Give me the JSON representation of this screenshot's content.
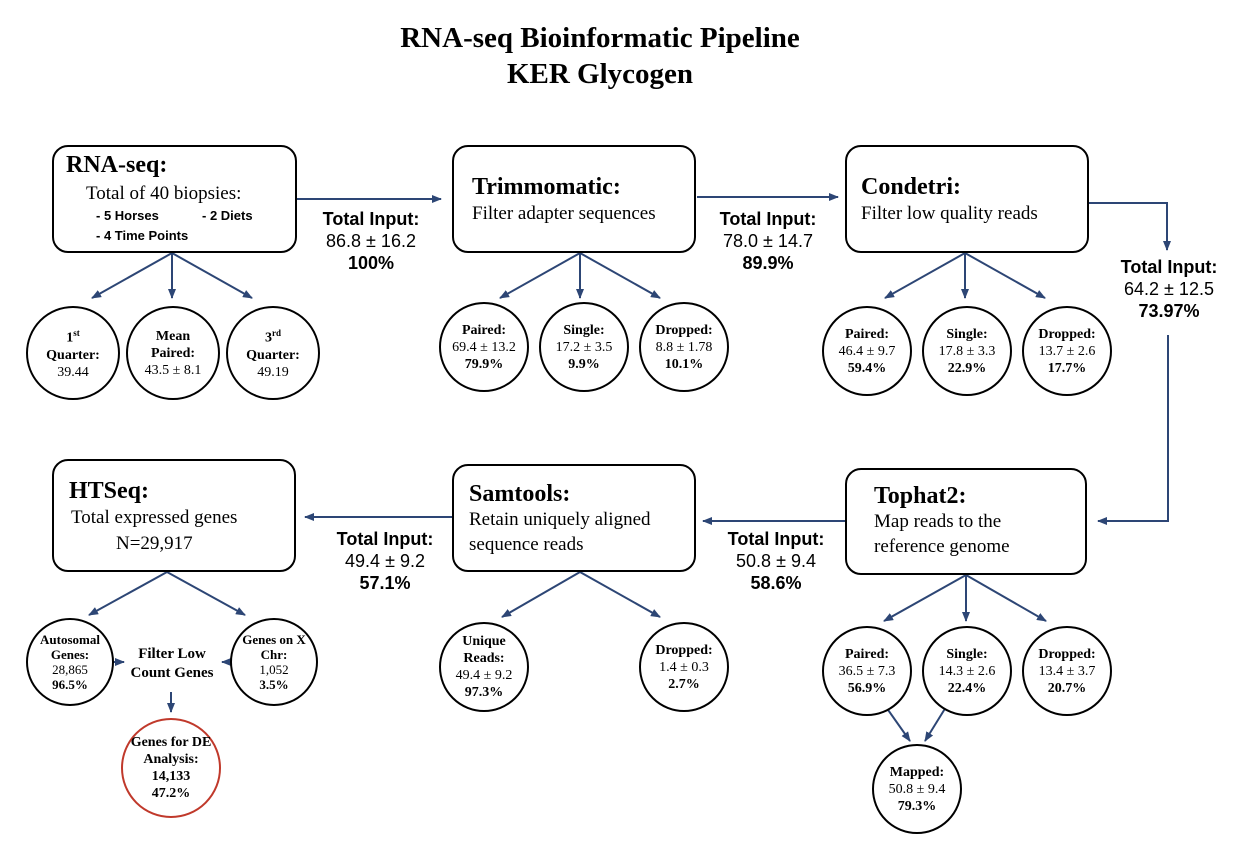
{
  "title": {
    "line1": "RNA-seq Bioinformatic Pipeline",
    "line2": "KER Glycogen"
  },
  "colors": {
    "arrow": "#2d4675",
    "highlight_border": "#c0392b"
  },
  "rnaseq": {
    "title": "RNA-seq:",
    "subtitle": "Total of 40 biopsies:",
    "bullets": [
      "- 5 Horses",
      "- 2 Diets",
      "- 4 Time Points"
    ],
    "circles": [
      {
        "label": "1st Quarter:",
        "value": "39.44"
      },
      {
        "label": "Mean Paired:",
        "value": "43.5 ± 8.1"
      },
      {
        "label": "3rd Quarter:",
        "value": "49.19"
      }
    ]
  },
  "input1": {
    "label": "Total Input:",
    "value": "86.8 ± 16.2",
    "pct": "100%"
  },
  "trimmomatic": {
    "title": "Trimmomatic:",
    "text": "Filter adapter sequences",
    "circles": [
      {
        "label": "Paired:",
        "value": "69.4 ± 13.2",
        "pct": "79.9%"
      },
      {
        "label": "Single:",
        "value": "17.2 ± 3.5",
        "pct": "9.9%"
      },
      {
        "label": "Dropped:",
        "value": "8.8 ± 1.78",
        "pct": "10.1%"
      }
    ]
  },
  "input2": {
    "label": "Total Input:",
    "value": "78.0 ± 14.7",
    "pct": "89.9%"
  },
  "condetri": {
    "title": "Condetri:",
    "text": "Filter low quality reads",
    "circles": [
      {
        "label": "Paired:",
        "value": "46.4 ± 9.7",
        "pct": "59.4%"
      },
      {
        "label": "Single:",
        "value": "17.8 ± 3.3",
        "pct": "22.9%"
      },
      {
        "label": "Dropped:",
        "value": "13.7 ± 2.6",
        "pct": "17.7%"
      }
    ]
  },
  "input3": {
    "label": "Total Input:",
    "value": "64.2 ± 12.5",
    "pct": "73.97%"
  },
  "tophat": {
    "title": "Tophat2:",
    "text1": "Map reads to the",
    "text2": "reference genome",
    "circles": [
      {
        "label": "Paired:",
        "value": "36.5 ± 7.3",
        "pct": "56.9%"
      },
      {
        "label": "Single:",
        "value": "14.3 ± 2.6",
        "pct": "22.4%"
      },
      {
        "label": "Dropped:",
        "value": "13.4 ± 3.7",
        "pct": "20.7%"
      }
    ],
    "mapped": {
      "label": "Mapped:",
      "value": "50.8 ± 9.4",
      "pct": "79.3%"
    }
  },
  "input4": {
    "label": "Total Input:",
    "value": "50.8 ± 9.4",
    "pct": "58.6%"
  },
  "samtools": {
    "title": "Samtools:",
    "text1": "Retain uniquely aligned",
    "text2": "sequence reads",
    "circles": [
      {
        "label": "Unique Reads:",
        "value": "49.4 ± 9.2",
        "pct": "97.3%"
      },
      {
        "label": "Dropped:",
        "value": "1.4 ± 0.3",
        "pct": "2.7%"
      }
    ]
  },
  "input5": {
    "label": "Total Input:",
    "value": "49.4 ± 9.2",
    "pct": "57.1%"
  },
  "htseq": {
    "title": "HTSeq:",
    "text1": "Total expressed genes",
    "text2": "N=29,917",
    "circles": [
      {
        "label": "Autosomal Genes:",
        "value": "28,865",
        "pct": "96.5%"
      },
      {
        "label": "Genes on X Chr:",
        "value": "1,052",
        "pct": "3.5%"
      }
    ],
    "filter": "Filter Low Count Genes",
    "de": {
      "label": "Genes for DE Analysis:",
      "value": "14,133",
      "pct": "47.2%"
    }
  }
}
